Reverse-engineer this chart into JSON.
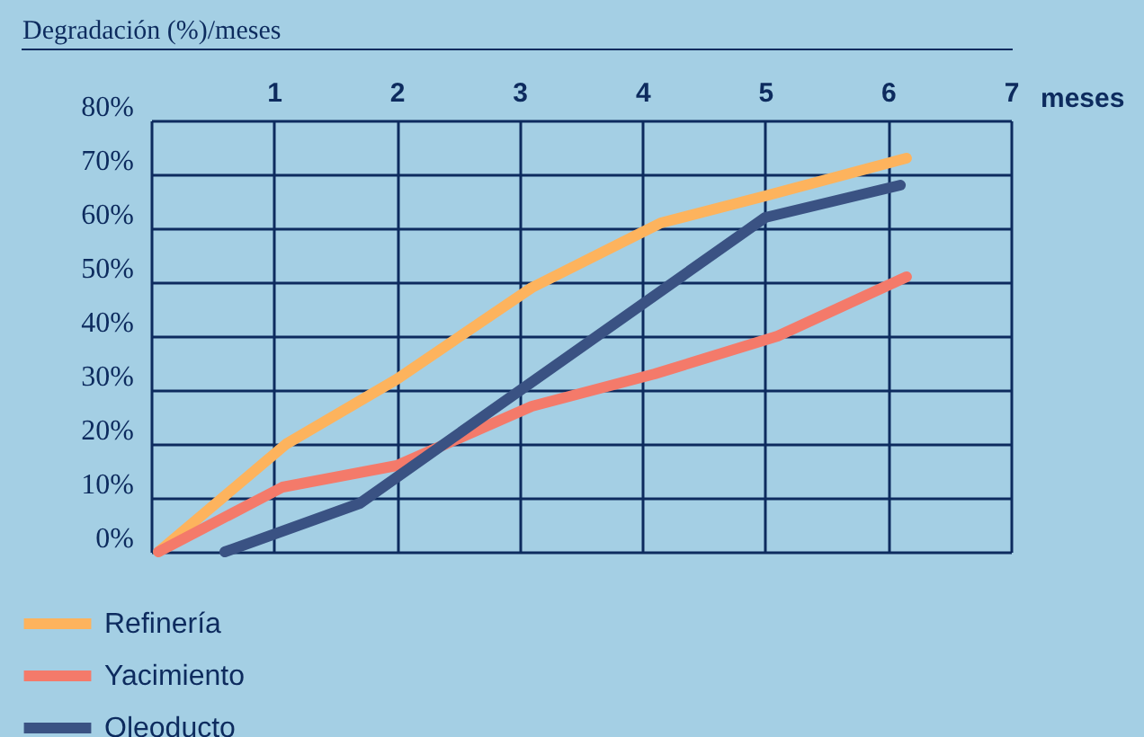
{
  "chart_data": {
    "type": "line",
    "ylabel": "Degradación (%)/meses",
    "xlabel": "meses",
    "xlim": [
      0,
      7
    ],
    "xticks": [
      {
        "value": 0,
        "label": null
      },
      1,
      2,
      3,
      4,
      5,
      6,
      7
    ],
    "ylim": [
      0,
      80
    ],
    "yticks": [
      {
        "value": 0,
        "label": "0%"
      },
      {
        "value": 10,
        "label": "10%"
      },
      {
        "value": 20,
        "label": "20%"
      },
      {
        "value": 30,
        "label": "30%"
      },
      {
        "value": 40,
        "label": "40%"
      },
      {
        "value": 50,
        "label": "50%"
      },
      {
        "value": 60,
        "label": "60%"
      },
      {
        "value": 70,
        "label": "70%"
      },
      {
        "value": 80,
        "label": "80%"
      }
    ],
    "grid": true,
    "legend": "bottom left",
    "marker": "none",
    "line_style": "solid",
    "series": [
      {
        "name": "Refinería",
        "color": "#fdb35d",
        "x": [
          0.06,
          1.1,
          2.0,
          3.1,
          4.15,
          5.0,
          6.15
        ],
        "values": [
          0,
          20,
          32,
          49,
          61,
          66,
          73
        ]
      },
      {
        "name": "Yacimiento",
        "color": "#f47a6a",
        "x": [
          0.06,
          1.07,
          2.0,
          3.1,
          4.1,
          5.1,
          6.15
        ],
        "values": [
          0,
          12,
          16,
          27,
          33,
          40,
          51
        ]
      },
      {
        "name": "Oleoducto",
        "color": "#3a5283",
        "x": [
          0.6,
          1.7,
          5.0,
          6.1
        ],
        "values": [
          0,
          9,
          62,
          68
        ]
      }
    ]
  }
}
